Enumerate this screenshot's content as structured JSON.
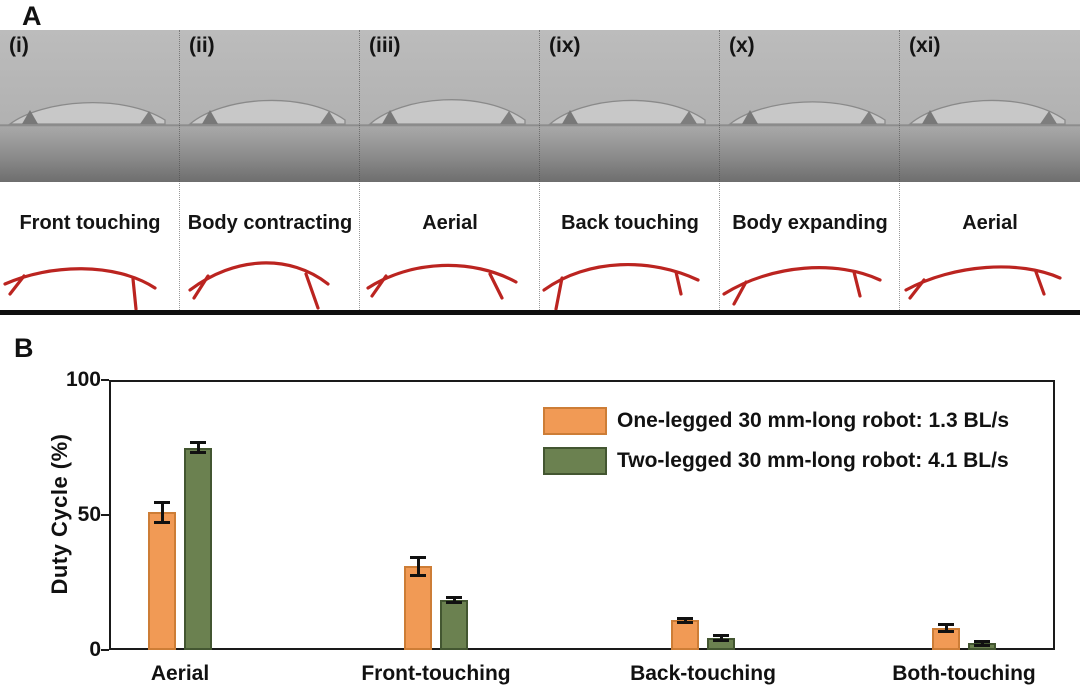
{
  "figure": {
    "panel_a": {
      "label": "A",
      "frames": [
        {
          "id": "(i)",
          "phase": "Front touching"
        },
        {
          "id": "(ii)",
          "phase": "Body contracting"
        },
        {
          "id": "(iii)",
          "phase": "Aerial"
        },
        {
          "id": "(ix)",
          "phase": "Back touching"
        },
        {
          "id": "(x)",
          "phase": "Body expanding"
        },
        {
          "id": "(xi)",
          "phase": "Aerial"
        }
      ]
    },
    "panel_b": {
      "label": "B"
    }
  },
  "chart_data": {
    "type": "bar",
    "categories": [
      "Aerial",
      "Front-touching",
      "Back-touching",
      "Both-touching"
    ],
    "series": [
      {
        "name": "One-legged 30 mm-long robot: 1.3 BL/s",
        "color": "#F19A55",
        "edge_color": "#CD7D36",
        "values": [
          51,
          31,
          11,
          8
        ],
        "errors": [
          4,
          3.5,
          1,
          1.5
        ]
      },
      {
        "name": "Two-legged 30 mm-long robot: 4.1 BL/s",
        "color": "#6B8150",
        "edge_color": "#435631",
        "values": [
          75,
          18.5,
          4.5,
          2.5
        ],
        "errors": [
          2,
          1,
          1,
          1
        ]
      }
    ],
    "title": "",
    "xlabel": "",
    "ylabel": "Duty Cycle (%)",
    "yticks": [
      0,
      50,
      100
    ],
    "ylim": [
      0,
      100
    ],
    "grid": false,
    "legend_position": "upper right",
    "error_bar_color": "#111111"
  },
  "colors": {
    "diagram_red": "#BB2420",
    "ground_line": "#111111"
  }
}
